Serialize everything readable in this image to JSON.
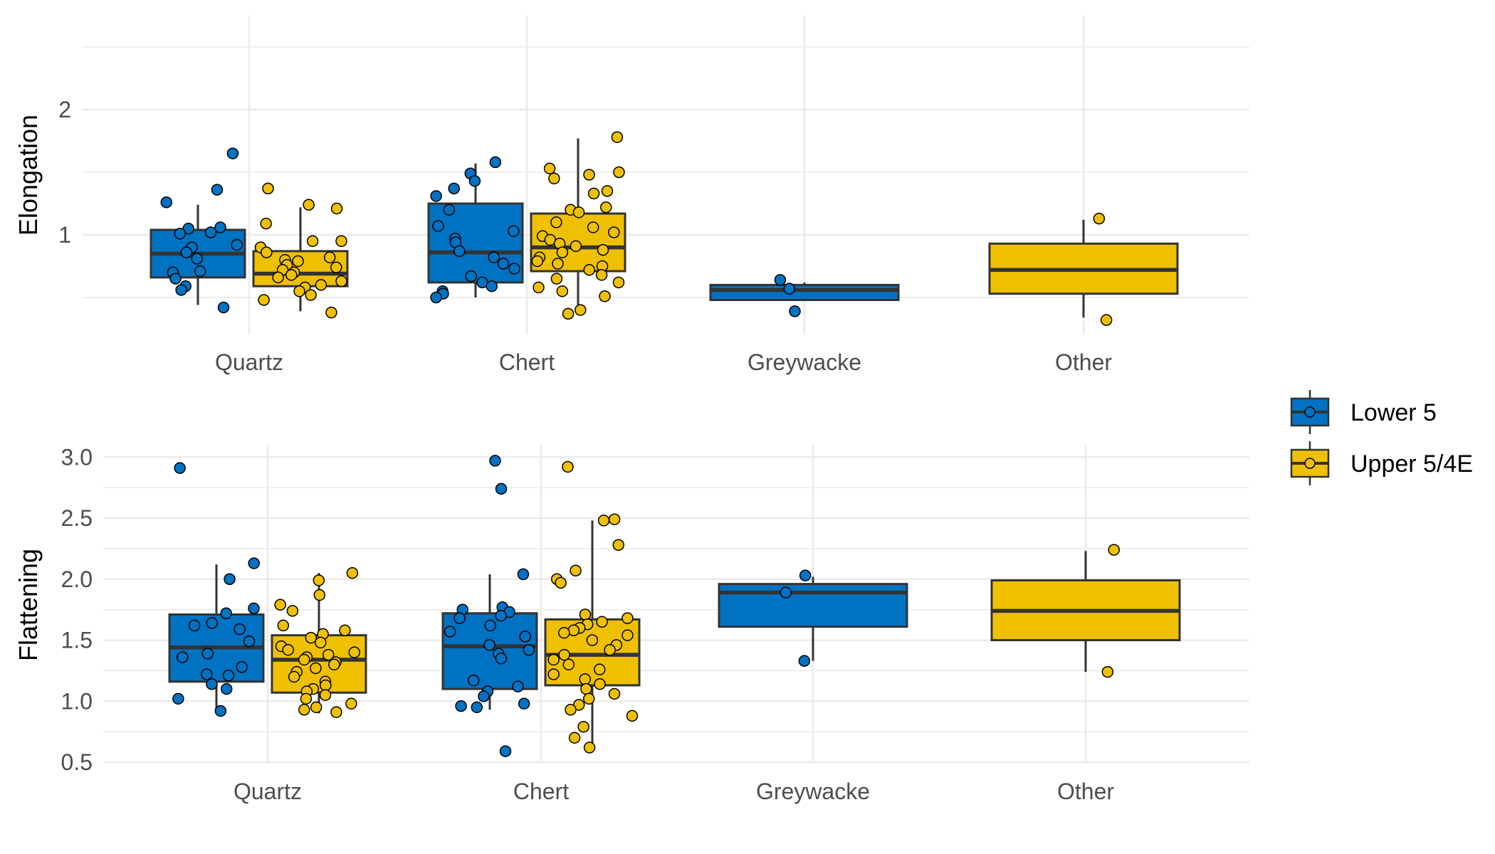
{
  "chart_data": [
    {
      "type": "boxplot",
      "ylabel": "Elongation",
      "xlabel": "",
      "categories": [
        "Quartz",
        "Chert",
        "Greywacke",
        "Other"
      ],
      "ylim": [
        0.2,
        2.5
      ],
      "yticks": [
        1,
        2
      ],
      "grid": true,
      "series": [
        {
          "name": "Lower 5",
          "color": "#0072c2",
          "boxes": [
            {
              "category": "Quartz",
              "min": 0.44,
              "q1": 0.66,
              "median": 0.85,
              "q3": 1.04,
              "max": 1.24
            },
            {
              "category": "Chert",
              "min": 0.5,
              "q1": 0.62,
              "median": 0.86,
              "q3": 1.25,
              "max": 1.57
            },
            {
              "category": "Greywacke",
              "min": 0.48,
              "q1": 0.48,
              "median": 0.56,
              "q3": 0.6,
              "max": 0.62
            }
          ],
          "points": [
            {
              "category": "Quartz",
              "values": [
                1.65,
                1.36,
                1.26,
                1.06,
                1.05,
                1.02,
                1.01,
                0.92,
                0.9,
                0.86,
                0.81,
                0.71,
                0.7,
                0.65,
                0.59,
                0.56,
                0.42
              ]
            },
            {
              "category": "Chert",
              "values": [
                1.58,
                1.49,
                1.43,
                1.37,
                1.31,
                1.2,
                1.07,
                1.03,
                0.97,
                0.94,
                0.87,
                0.82,
                0.77,
                0.73,
                0.67,
                0.62,
                0.59,
                0.55,
                0.53,
                0.5
              ]
            },
            {
              "category": "Greywacke",
              "values": [
                0.64,
                0.57,
                0.39
              ]
            }
          ]
        },
        {
          "name": "Upper 5/4E",
          "color": "#efc000",
          "boxes": [
            {
              "category": "Quartz",
              "min": 0.39,
              "q1": 0.59,
              "median": 0.69,
              "q3": 0.87,
              "max": 1.22
            },
            {
              "category": "Chert",
              "min": 0.37,
              "q1": 0.71,
              "median": 0.9,
              "q3": 1.17,
              "max": 1.77
            },
            {
              "category": "Other",
              "min": 0.34,
              "q1": 0.53,
              "median": 0.72,
              "q3": 0.93,
              "max": 1.12
            }
          ]
        }
      ],
      "points_upper": [
        {
          "category": "Quartz",
          "values": [
            1.37,
            1.24,
            1.21,
            1.09,
            0.95,
            0.95,
            0.9,
            0.86,
            0.82,
            0.8,
            0.79,
            0.76,
            0.74,
            0.72,
            0.7,
            0.68,
            0.66,
            0.63,
            0.6,
            0.58,
            0.55,
            0.52,
            0.48,
            0.38
          ]
        },
        {
          "category": "Chert",
          "values": [
            1.78,
            1.53,
            1.5,
            1.48,
            1.45,
            1.35,
            1.33,
            1.22,
            1.2,
            1.18,
            1.1,
            1.06,
            1.02,
            0.99,
            0.96,
            0.93,
            0.91,
            0.88,
            0.86,
            0.82,
            0.79,
            0.77,
            0.75,
            0.72,
            0.68,
            0.65,
            0.62,
            0.58,
            0.55,
            0.51,
            0.4,
            0.37
          ]
        },
        {
          "category": "Other",
          "values": [
            1.13,
            0.32
          ]
        }
      ]
    },
    {
      "type": "boxplot",
      "ylabel": "Flattening",
      "xlabel": "",
      "categories": [
        "Quartz",
        "Chert",
        "Greywacke",
        "Other"
      ],
      "ylim": [
        0.5,
        3.1
      ],
      "yticks": [
        0.5,
        1.0,
        1.5,
        2.0,
        2.5,
        3.0
      ],
      "grid": true,
      "series": [
        {
          "name": "Lower 5",
          "color": "#0072c2",
          "boxes": [
            {
              "category": "Quartz",
              "min": 0.93,
              "q1": 1.16,
              "median": 1.44,
              "q3": 1.71,
              "max": 2.12
            },
            {
              "category": "Chert",
              "min": 0.93,
              "q1": 1.1,
              "median": 1.45,
              "q3": 1.72,
              "max": 2.04
            },
            {
              "category": "Greywacke",
              "min": 1.33,
              "q1": 1.61,
              "median": 1.89,
              "q3": 1.96,
              "max": 2.02
            }
          ]
        },
        {
          "name": "Upper 5/4E",
          "color": "#efc000",
          "boxes": [
            {
              "category": "Quartz",
              "min": 0.9,
              "q1": 1.07,
              "median": 1.34,
              "q3": 1.54,
              "max": 2.05
            },
            {
              "category": "Chert",
              "min": 0.63,
              "q1": 1.13,
              "median": 1.38,
              "q3": 1.67,
              "max": 2.48
            },
            {
              "category": "Other",
              "min": 1.24,
              "q1": 1.5,
              "median": 1.74,
              "q3": 1.99,
              "max": 2.23
            }
          ]
        }
      ],
      "points_lower": [
        {
          "category": "Quartz",
          "values": [
            2.91,
            2.13,
            2.0,
            1.76,
            1.72,
            1.64,
            1.62,
            1.59,
            1.49,
            1.39,
            1.36,
            1.28,
            1.22,
            1.21,
            1.14,
            1.1,
            1.02,
            0.92
          ]
        },
        {
          "category": "Chert",
          "values": [
            2.97,
            2.74,
            2.04,
            1.77,
            1.75,
            1.73,
            1.7,
            1.68,
            1.62,
            1.57,
            1.53,
            1.46,
            1.42,
            1.39,
            1.35,
            1.17,
            1.12,
            1.08,
            1.04,
            0.98,
            0.96,
            0.95,
            0.59
          ]
        },
        {
          "category": "Greywacke",
          "values": [
            2.03,
            1.89,
            1.33
          ]
        }
      ],
      "points_upper": [
        {
          "category": "Quartz",
          "values": [
            2.05,
            1.99,
            1.87,
            1.79,
            1.74,
            1.62,
            1.58,
            1.55,
            1.52,
            1.48,
            1.45,
            1.42,
            1.4,
            1.38,
            1.36,
            1.34,
            1.32,
            1.3,
            1.27,
            1.24,
            1.2,
            1.16,
            1.13,
            1.1,
            1.08,
            1.05,
            1.02,
            0.98,
            0.95,
            0.93,
            0.91
          ]
        },
        {
          "category": "Chert",
          "values": [
            2.92,
            2.49,
            2.48,
            2.28,
            2.07,
            2.0,
            1.97,
            1.71,
            1.68,
            1.65,
            1.63,
            1.6,
            1.58,
            1.56,
            1.54,
            1.5,
            1.46,
            1.42,
            1.38,
            1.34,
            1.3,
            1.26,
            1.22,
            1.18,
            1.14,
            1.1,
            1.06,
            1.02,
            0.97,
            0.93,
            0.88,
            0.79,
            0.7,
            0.62
          ]
        },
        {
          "category": "Other",
          "values": [
            2.24,
            1.24
          ]
        }
      ]
    }
  ],
  "legend": {
    "placement": "right",
    "items": [
      {
        "label": "Lower 5",
        "color": "#0072c2"
      },
      {
        "label": "Upper 5/4E",
        "color": "#efc000"
      }
    ]
  }
}
